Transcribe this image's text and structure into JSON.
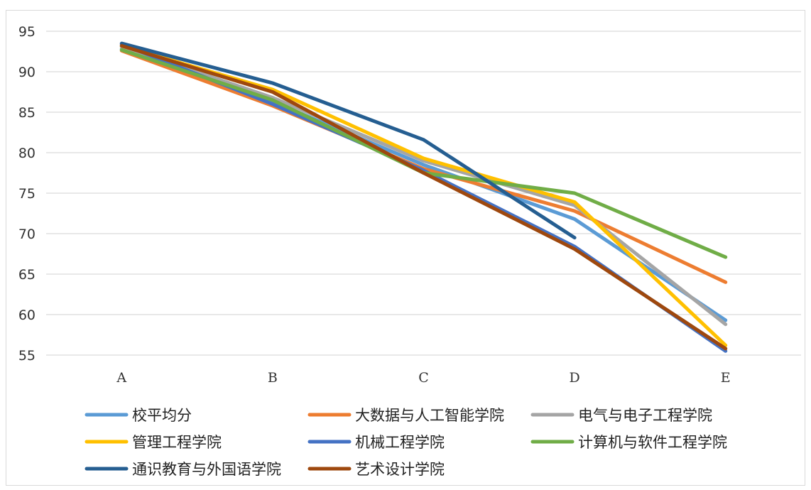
{
  "chart_data": {
    "type": "line",
    "categories": [
      "A",
      "B",
      "C",
      "D",
      "E"
    ],
    "ylim": [
      55,
      95
    ],
    "yticks": [
      "95",
      "90",
      "85",
      "80",
      "75",
      "70",
      "65",
      "60",
      "55"
    ],
    "grid": true,
    "legend_position": "bottom",
    "series": [
      {
        "name": "校平均分",
        "color": "#5b9bd5",
        "values": [
          92.8,
          86.3,
          78.5,
          71.8,
          59.3
        ]
      },
      {
        "name": "大数据与人工智能学院",
        "color": "#ed7d31",
        "values": [
          92.6,
          85.8,
          78.0,
          72.8,
          64.0
        ]
      },
      {
        "name": "电气与电子工程学院",
        "color": "#a5a5a5",
        "values": [
          93.1,
          86.8,
          79.0,
          73.5,
          58.8
        ]
      },
      {
        "name": "管理工程学院",
        "color": "#ffc000",
        "values": [
          93.2,
          87.8,
          79.3,
          73.9,
          56.2
        ]
      },
      {
        "name": "机械工程学院",
        "color": "#4472c4",
        "values": [
          93.4,
          86.0,
          77.8,
          68.4,
          55.5
        ]
      },
      {
        "name": "计算机与软件工程学院",
        "color": "#70ad47",
        "values": [
          92.7,
          86.5,
          77.5,
          75.0,
          67.1
        ]
      },
      {
        "name": "通识教育与外国语学院",
        "color": "#255e91",
        "values": [
          93.5,
          88.6,
          81.6,
          69.5,
          null
        ]
      },
      {
        "name": "艺术设计学院",
        "color": "#9e480e",
        "values": [
          93.2,
          87.5,
          77.5,
          68.1,
          55.8
        ]
      }
    ]
  }
}
